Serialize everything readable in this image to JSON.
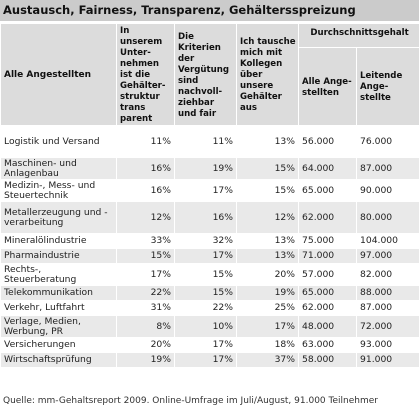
{
  "title": "Austausch, Fairness, Transparenz, Gehältersspreizung",
  "header": {
    "all_employees": "Alle Angestellten",
    "col_transparency": "In unserem Unter-nehmen ist die Gehälter-struktur trans parent",
    "col_fair": "Die Kriterien der Vergütung sind nachvoll-ziehbar und fair",
    "col_exchange": "Ich tausche mich mit Kollegen über unsere Gehälter aus",
    "group_avg_salary": "Durchschnittsgehalt",
    "col_all": "Alle Ange-stellten",
    "col_leading": "Leitende Ange-stellte"
  },
  "rows": [
    {
      "industry": "Logistik und Versand",
      "transparency": "11%",
      "fair": "11%",
      "exchange": "13%",
      "avg_all": "56.000",
      "avg_leading": "76.000"
    },
    {
      "industry": "Maschinen- und Anlagenbau",
      "transparency": "16%",
      "fair": "19%",
      "exchange": "15%",
      "avg_all": "64.000",
      "avg_leading": "87.000"
    },
    {
      "industry": "Medizin-, Mess- und Steuertechnik",
      "transparency": "16%",
      "fair": "17%",
      "exchange": "15%",
      "avg_all": "65.000",
      "avg_leading": "90.000"
    },
    {
      "industry": "Metallerzeugung und -verarbeitung",
      "transparency": "12%",
      "fair": "16%",
      "exchange": "12%",
      "avg_all": "62.000",
      "avg_leading": "80.000"
    },
    {
      "industry": "Mineralölindustrie",
      "transparency": "33%",
      "fair": "32%",
      "exchange": "13%",
      "avg_all": "75.000",
      "avg_leading": "104.000"
    },
    {
      "industry": "Pharmaindustrie",
      "transparency": "15%",
      "fair": "17%",
      "exchange": "13%",
      "avg_all": "71.000",
      "avg_leading": "97.000"
    },
    {
      "industry": "Rechts-, Steuerberatung",
      "transparency": "17%",
      "fair": "15%",
      "exchange": "20%",
      "avg_all": "57.000",
      "avg_leading": "82.000"
    },
    {
      "industry": "Telekommunikation",
      "transparency": "22%",
      "fair": "15%",
      "exchange": "19%",
      "avg_all": "65.000",
      "avg_leading": "88.000"
    },
    {
      "industry": "Verkehr, Luftfahrt",
      "transparency": "31%",
      "fair": "22%",
      "exchange": "25%",
      "avg_all": "62.000",
      "avg_leading": "87.000"
    },
    {
      "industry": "Verlage, Medien, Werbung, PR",
      "transparency": "8%",
      "fair": "10%",
      "exchange": "17%",
      "avg_all": "48.000",
      "avg_leading": "72.000"
    },
    {
      "industry": "Versicherungen",
      "transparency": "20%",
      "fair": "17%",
      "exchange": "18%",
      "avg_all": "63.000",
      "avg_leading": "93.000"
    },
    {
      "industry": "Wirtschaftsprüfung",
      "transparency": "19%",
      "fair": "17%",
      "exchange": "37%",
      "avg_all": "58.000",
      "avg_leading": "91.000"
    }
  ],
  "source": "Quelle: mm-Gehaltsreport 2009. Online-Umfrage im Juli/August, 91.000 Teilnehmer"
}
